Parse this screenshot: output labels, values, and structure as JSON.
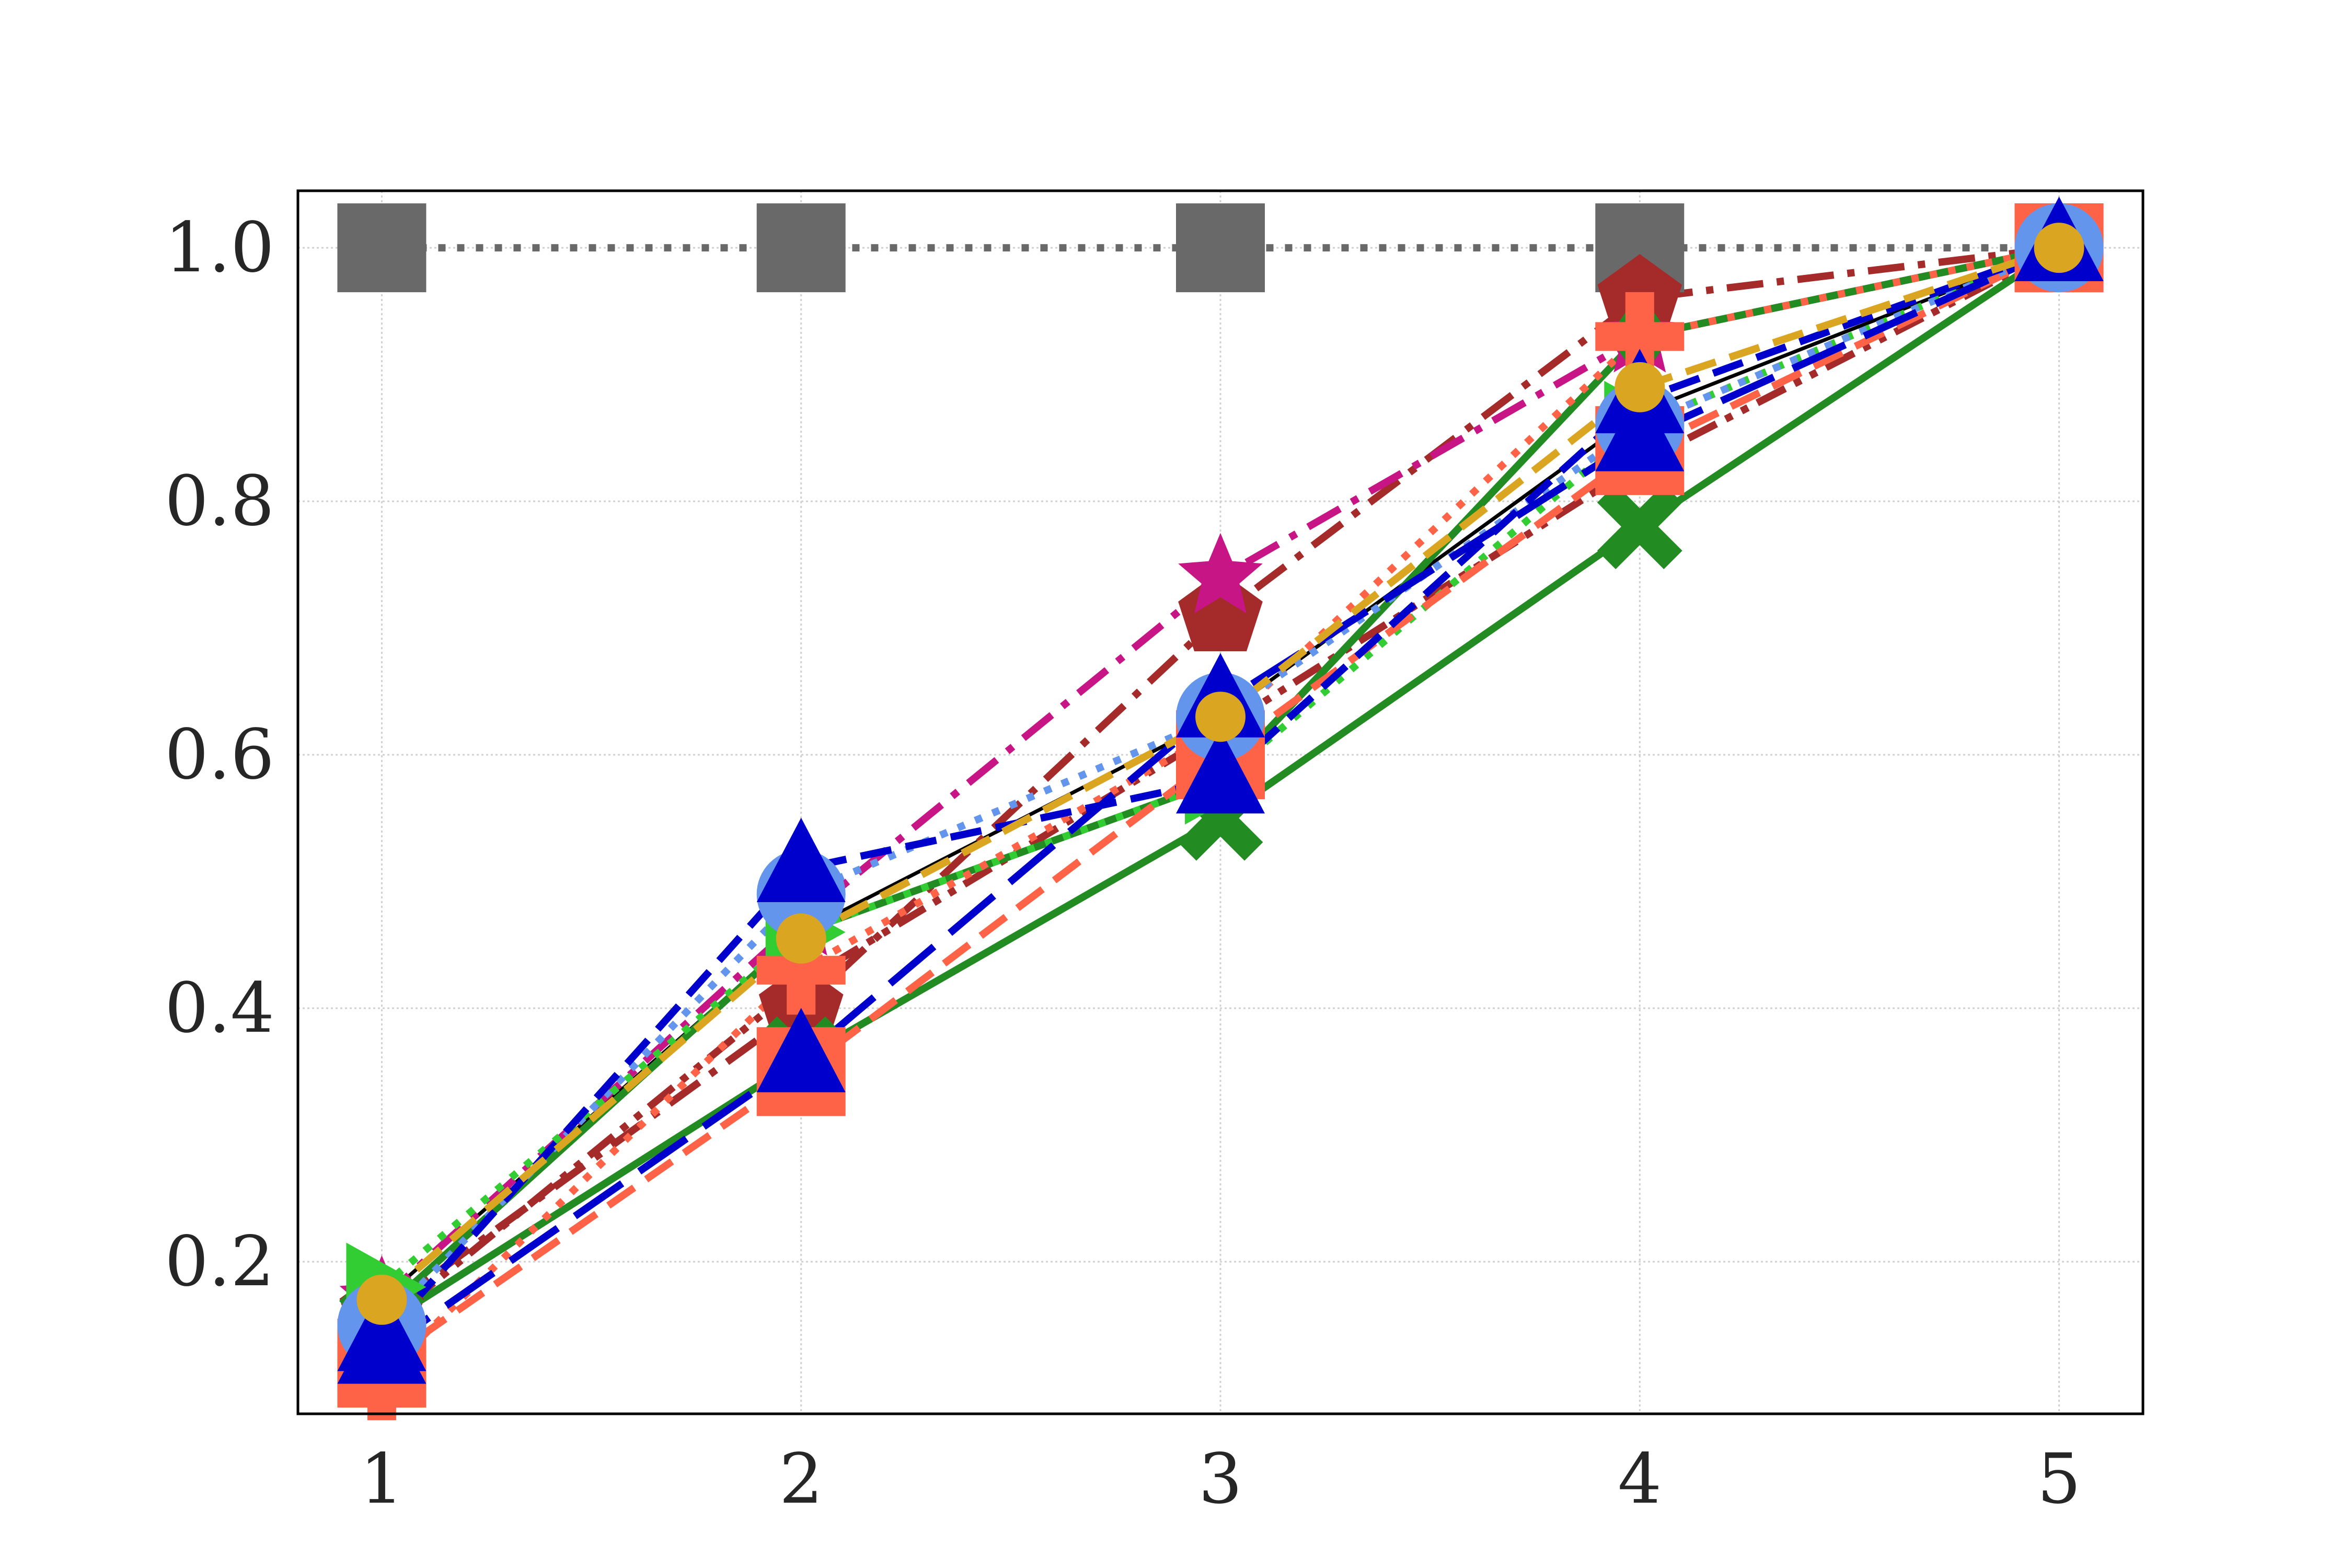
{
  "chart_data": {
    "type": "line",
    "title": "",
    "xlabel": "",
    "ylabel": "",
    "x": [
      1,
      2,
      3,
      4,
      5
    ],
    "xlim": [
      0.8,
      5.2
    ],
    "ylim": [
      0.08,
      1.045
    ],
    "xticks": [
      "1",
      "2",
      "3",
      "4",
      "5"
    ],
    "yticks": [
      "0.2",
      "0.4",
      "0.6",
      "0.8",
      "1.0"
    ],
    "grid": true,
    "legend": "none",
    "series": [
      {
        "color": "#696969",
        "dash": "dotted",
        "marker": "square",
        "values": [
          1.0,
          1.0,
          1.0,
          1.0,
          1.0
        ]
      },
      {
        "color": "#000000",
        "dash": "solid-thin",
        "marker": "none",
        "values": [
          0.17,
          0.46,
          0.63,
          0.87,
          1.0
        ]
      },
      {
        "color": "#a52a2a",
        "dash": "dashdot",
        "marker": "pentagon",
        "values": [
          0.16,
          0.4,
          0.71,
          0.96,
          1.0
        ]
      },
      {
        "color": "#a52a2a",
        "dash": "dotdash",
        "marker": "none",
        "values": [
          0.15,
          0.42,
          0.62,
          0.83,
          1.0
        ]
      },
      {
        "color": "#c71585",
        "dash": "dashdot",
        "marker": "star",
        "values": [
          0.17,
          0.47,
          0.74,
          0.93,
          1.0
        ]
      },
      {
        "color": "#228b22",
        "dash": "solid",
        "marker": "x",
        "values": [
          0.15,
          0.36,
          0.55,
          0.78,
          1.0
        ]
      },
      {
        "color": "#228b22",
        "dash": "solid",
        "marker": "diamond",
        "values": [
          0.16,
          0.46,
          0.58,
          0.93,
          1.0
        ]
      },
      {
        "color": "#32cd32",
        "dash": "dotted",
        "marker": "triangle-right",
        "values": [
          0.18,
          0.46,
          0.58,
          0.86,
          1.0
        ]
      },
      {
        "color": "#ff6347",
        "dash": "dashed",
        "marker": "square",
        "values": [
          0.12,
          0.35,
          0.6,
          0.84,
          1.0
        ]
      },
      {
        "color": "#ff6347",
        "dash": "dotted",
        "marker": "plus",
        "values": [
          0.11,
          0.43,
          0.62,
          0.93,
          1.0
        ]
      },
      {
        "color": "#6495ed",
        "dash": "dotted",
        "marker": "circle",
        "values": [
          0.15,
          0.49,
          0.63,
          0.86,
          1.0
        ]
      },
      {
        "color": "#0000cd",
        "dash": "dashed",
        "marker": "triangle",
        "values": [
          0.14,
          0.51,
          0.58,
          0.88,
          1.0
        ]
      },
      {
        "color": "#0000cd",
        "dash": "longdash",
        "marker": "triangle",
        "values": [
          0.13,
          0.36,
          0.64,
          0.85,
          1.0
        ]
      },
      {
        "color": "#daa520",
        "dash": "dashed",
        "marker": "circle-small",
        "values": [
          0.17,
          0.455,
          0.63,
          0.89,
          1.0
        ]
      }
    ]
  }
}
